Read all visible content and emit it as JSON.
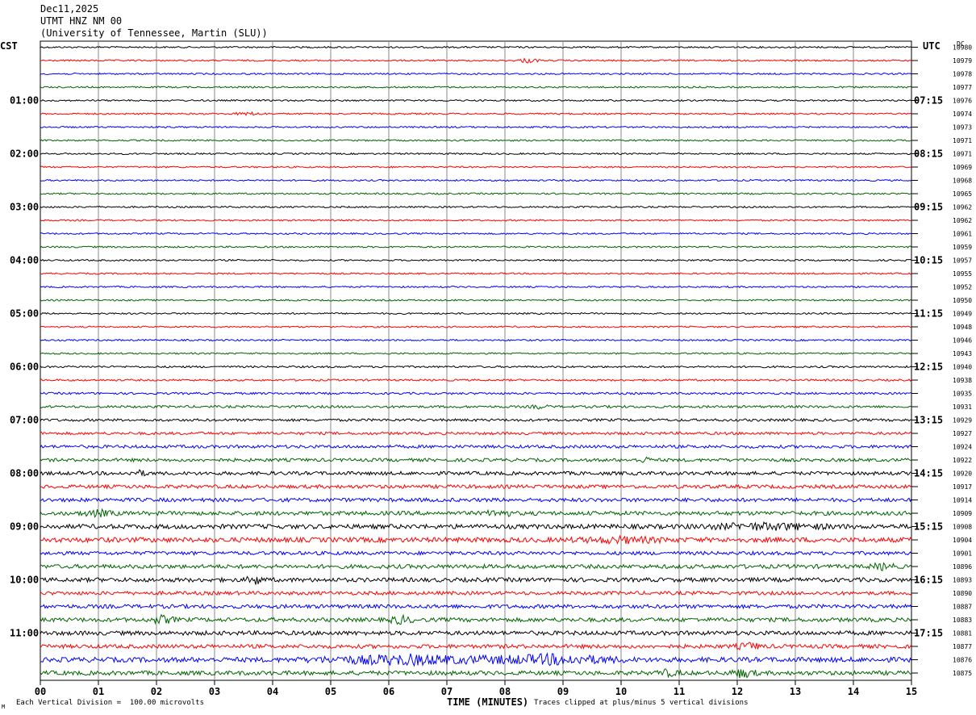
{
  "header": {
    "date": "Dec11,2025",
    "station": "UTMT HNZ NM 00",
    "network": "(University of Tennessee, Martin (SLU))"
  },
  "left_timezone": "CST",
  "right_timezone": "UTC",
  "dc_label": "DC",
  "footer": {
    "scale_note": "Each Vertical Division =  100.00 microvolts",
    "x_title": "TIME (MINUTES)",
    "clip_note": "Traces clipped at plus/minus 5 vertical divisions",
    "corner_mark": "M"
  },
  "colors": {
    "cycle": [
      "#000000",
      "#ff0000",
      "#0000ff",
      "#006400"
    ],
    "grid": "#888888"
  },
  "chart_data": {
    "type": "line",
    "subtype": "helicorder",
    "xlabel": "TIME (MINUTES)",
    "xlim": [
      0,
      15
    ],
    "x_ticks": [
      "00",
      "01",
      "02",
      "03",
      "04",
      "05",
      "06",
      "07",
      "08",
      "09",
      "10",
      "11",
      "12",
      "13",
      "14",
      "15"
    ],
    "traces_per_hour": 4,
    "minutes_per_trace": 15,
    "left_hour_labels": [
      {
        "trace": 4,
        "label": "01:00"
      },
      {
        "trace": 8,
        "label": "02:00"
      },
      {
        "trace": 12,
        "label": "03:00"
      },
      {
        "trace": 16,
        "label": "04:00"
      },
      {
        "trace": 20,
        "label": "05:00"
      },
      {
        "trace": 24,
        "label": "06:00"
      },
      {
        "trace": 28,
        "label": "07:00"
      },
      {
        "trace": 32,
        "label": "08:00"
      },
      {
        "trace": 36,
        "label": "09:00"
      },
      {
        "trace": 40,
        "label": "10:00"
      },
      {
        "trace": 44,
        "label": "11:00"
      }
    ],
    "right_hour_labels": [
      {
        "trace": 4,
        "label": "07:15"
      },
      {
        "trace": 8,
        "label": "08:15"
      },
      {
        "trace": 12,
        "label": "09:15"
      },
      {
        "trace": 16,
        "label": "10:15"
      },
      {
        "trace": 20,
        "label": "11:15"
      },
      {
        "trace": 24,
        "label": "12:15"
      },
      {
        "trace": 28,
        "label": "13:15"
      },
      {
        "trace": 32,
        "label": "14:15"
      },
      {
        "trace": 36,
        "label": "15:15"
      },
      {
        "trace": 40,
        "label": "16:15"
      },
      {
        "trace": 44,
        "label": "17:15"
      }
    ],
    "dc_values": [
      "10980",
      "10979",
      "10978",
      "10977",
      "10976",
      "10974",
      "10973",
      "10971",
      "10971",
      "10969",
      "10968",
      "10965",
      "10962",
      "10962",
      "10961",
      "10959",
      "10957",
      "10955",
      "10952",
      "10950",
      "10949",
      "10948",
      "10946",
      "10943",
      "10940",
      "10938",
      "10935",
      "10931",
      "10929",
      "10927",
      "10924",
      "10922",
      "10920",
      "10917",
      "10914",
      "10909",
      "10908",
      "10904",
      "10901",
      "10896",
      "10893",
      "10890",
      "10887",
      "10883",
      "10881",
      "10877",
      "10876",
      "10875"
    ],
    "noise_level": [
      1,
      1,
      1,
      1,
      1,
      1,
      1,
      1,
      1,
      1,
      1,
      1,
      1,
      1,
      1,
      1,
      1,
      1,
      1,
      1,
      1,
      1,
      1,
      1,
      1.2,
      1.2,
      1.3,
      1.5,
      1.6,
      1.7,
      1.9,
      2,
      2.2,
      2.2,
      2.3,
      2.5,
      2.8,
      3,
      2.2,
      2.5,
      2.6,
      2.2,
      2.4,
      2.5,
      2.6,
      2.4,
      3,
      2.6
    ],
    "events": [
      {
        "trace": 1,
        "minute": 8.4,
        "amplitude": 2.5,
        "duration": 0.25
      },
      {
        "trace": 5,
        "minute": 3.6,
        "amplitude": 1.5,
        "duration": 0.4
      },
      {
        "trace": 27,
        "minute": 8.6,
        "amplitude": 2.0,
        "duration": 0.2
      },
      {
        "trace": 31,
        "minute": 10.4,
        "amplitude": 2.5,
        "duration": 0.2
      },
      {
        "trace": 32,
        "minute": 1.7,
        "amplitude": 2.5,
        "duration": 0.2
      },
      {
        "trace": 35,
        "minute": 1.0,
        "amplitude": 3.0,
        "duration": 0.4
      },
      {
        "trace": 35,
        "minute": 7.9,
        "amplitude": 3.5,
        "duration": 0.3
      },
      {
        "trace": 36,
        "minute": 12.5,
        "amplitude": 3.0,
        "duration": 1.5
      },
      {
        "trace": 37,
        "minute": 10.0,
        "amplitude": 2.5,
        "duration": 1.0
      },
      {
        "trace": 39,
        "minute": 14.5,
        "amplitude": 3.0,
        "duration": 0.3
      },
      {
        "trace": 40,
        "minute": 3.7,
        "amplitude": 5.0,
        "duration": 0.2
      },
      {
        "trace": 43,
        "minute": 2.1,
        "amplitude": 4.0,
        "duration": 0.3
      },
      {
        "trace": 43,
        "minute": 6.2,
        "amplitude": 4.0,
        "duration": 0.3
      },
      {
        "trace": 45,
        "minute": 12.2,
        "amplitude": 3.5,
        "duration": 0.3
      },
      {
        "trace": 46,
        "minute": 6.3,
        "amplitude": 5.0,
        "duration": 2.0
      },
      {
        "trace": 46,
        "minute": 8.8,
        "amplitude": 5.0,
        "duration": 1.5
      },
      {
        "trace": 47,
        "minute": 12.1,
        "amplitude": 4.5,
        "duration": 0.3
      },
      {
        "trace": 47,
        "minute": 10.8,
        "amplitude": 3.0,
        "duration": 0.3
      }
    ]
  }
}
